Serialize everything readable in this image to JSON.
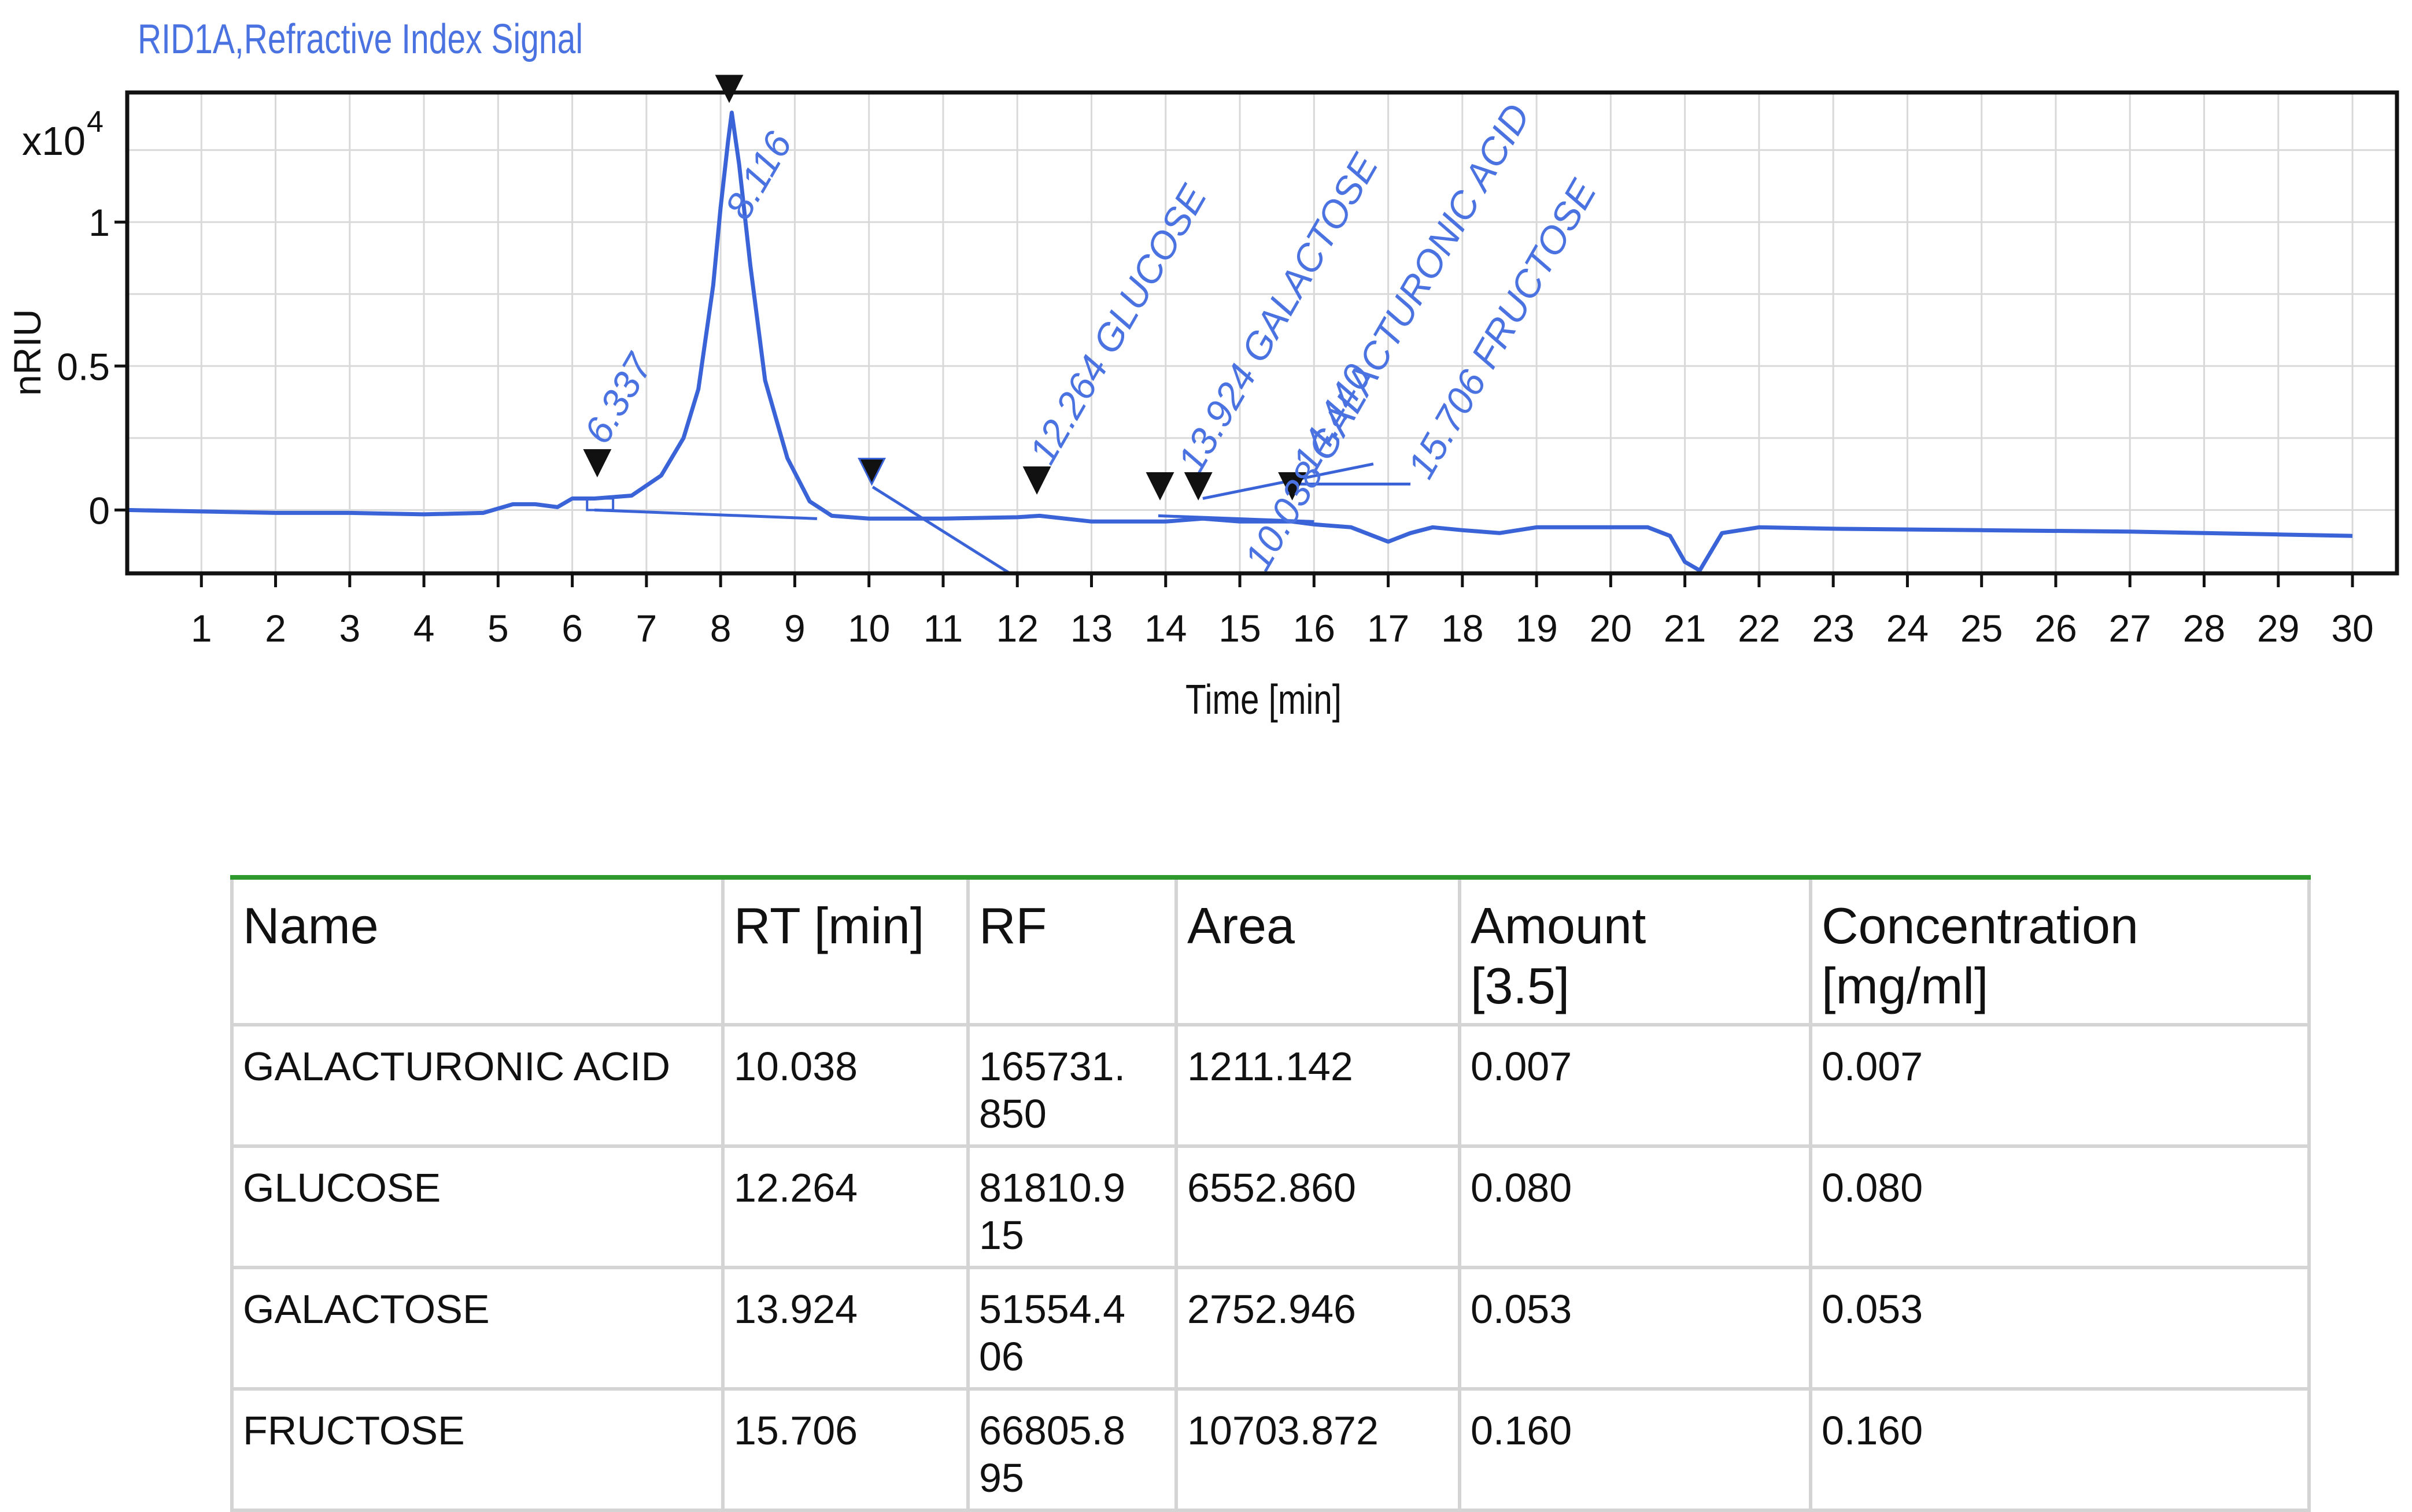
{
  "chart_data": {
    "type": "line",
    "title": "RID1A,Refractive Index Signal",
    "xlabel": "Time [min]",
    "ylabel": "nRIU",
    "y_multiplier_label": "x10",
    "y_multiplier_exponent": "4",
    "xlim": [
      0,
      30.6
    ],
    "ylim": [
      -0.22,
      1.45
    ],
    "xticks": [
      1,
      2,
      3,
      4,
      5,
      6,
      7,
      8,
      9,
      10,
      11,
      12,
      13,
      14,
      15,
      16,
      17,
      18,
      19,
      20,
      21,
      22,
      23,
      24,
      25,
      26,
      27,
      28,
      29,
      30
    ],
    "yticks": [
      0,
      0.5,
      1
    ],
    "ytick_labels": [
      "0",
      "0.5",
      "1"
    ],
    "grid": true,
    "series": [
      {
        "x": [
          0,
          1,
          2,
          3,
          4,
          4.8,
          5.2,
          5.5,
          5.8,
          6.0,
          6.3,
          6.8,
          7.2,
          7.5,
          7.7,
          7.9,
          8.0,
          8.1,
          8.15,
          8.25,
          8.4,
          8.6,
          8.9,
          9.2,
          9.5,
          10.0,
          11,
          12,
          12.3,
          13,
          14,
          14.5,
          15,
          15.7,
          16,
          16.5,
          17.0,
          17.3,
          17.6,
          18,
          18.5,
          19,
          20,
          20.5,
          20.8,
          21.0,
          21.2,
          21.5,
          22,
          23,
          25,
          27,
          28,
          29,
          30
        ],
        "y": [
          0.0,
          -0.005,
          -0.01,
          -0.01,
          -0.015,
          -0.01,
          0.02,
          0.02,
          0.01,
          0.04,
          0.04,
          0.05,
          0.12,
          0.25,
          0.42,
          0.78,
          1.05,
          1.28,
          1.38,
          1.2,
          0.85,
          0.45,
          0.18,
          0.03,
          -0.02,
          -0.03,
          -0.03,
          -0.025,
          -0.02,
          -0.04,
          -0.04,
          -0.03,
          -0.04,
          -0.04,
          -0.05,
          -0.06,
          -0.11,
          -0.08,
          -0.06,
          -0.07,
          -0.08,
          -0.06,
          -0.06,
          -0.06,
          -0.09,
          -0.18,
          -0.21,
          -0.08,
          -0.06,
          -0.065,
          -0.07,
          -0.075,
          -0.08,
          -0.085,
          -0.09
        ]
      }
    ],
    "peaks": [
      {
        "rt": 6.337,
        "label": "6.337"
      },
      {
        "rt": 8.116,
        "label": "8.116"
      },
      {
        "rt": 10.038,
        "label": ""
      },
      {
        "rt": 12.264,
        "label": "12.264 GLUCOSE"
      },
      {
        "rt": 13.924,
        "label": "13.924 GALACTOSE"
      },
      {
        "rt": 14.44,
        "label": "14.440"
      },
      {
        "rt": 15.706,
        "label": "15.706 FRUCTOSE"
      }
    ],
    "extra_annotation": "10.038 GALACTURONIC ACID"
  },
  "table": {
    "headers": [
      "Name",
      "RT [min]",
      "RF",
      "Area",
      "Amount\n [3.5]",
      "Concentration\n [mg/ml]"
    ],
    "rows": [
      [
        "GALACTURONIC ACID",
        "10.038",
        "165731.\n850",
        "1211.142",
        "0.007",
        "0.007"
      ],
      [
        "GLUCOSE",
        "12.264",
        "81810.9\n15",
        "6552.860",
        "0.080",
        "0.080"
      ],
      [
        "GALACTOSE",
        "13.924",
        "51554.4\n06",
        "2752.946",
        "0.053",
        "0.053"
      ],
      [
        "FRUCTOSE",
        "15.706",
        "66805.8\n95",
        "10703.872",
        "0.160",
        "0.160"
      ]
    ]
  },
  "colors": {
    "trace": "#3a63d8",
    "annotation": "#4a72e0",
    "grid": "#d9d9d9",
    "axis": "#111111",
    "table_top_rule": "#2e9a2e",
    "table_border": "#d4d4d4"
  }
}
